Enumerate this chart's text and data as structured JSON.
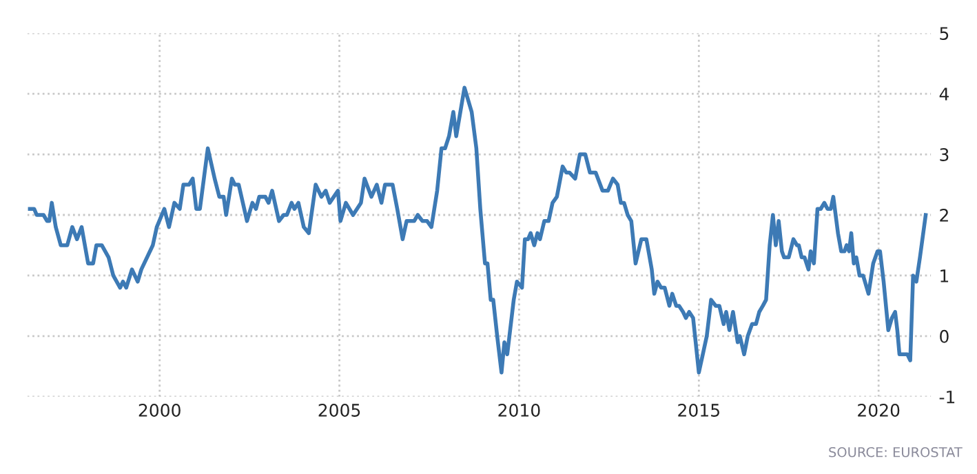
{
  "chart_data": {
    "type": "line",
    "x": [
      1996.39,
      1996.51,
      1996.58,
      1996.77,
      1996.87,
      1996.93,
      1997.0,
      1997.11,
      1997.25,
      1997.43,
      1997.57,
      1997.7,
      1997.83,
      1998.01,
      1998.15,
      1998.24,
      1998.39,
      1998.58,
      1998.71,
      1998.9,
      1998.98,
      1999.07,
      1999.23,
      1999.39,
      1999.49,
      1999.81,
      1999.92,
      2000.13,
      2000.26,
      2000.41,
      2000.56,
      2000.66,
      2000.82,
      2000.92,
      2001.02,
      2001.12,
      2001.34,
      2001.53,
      2001.66,
      2001.78,
      2001.85,
      2002.01,
      2002.09,
      2002.2,
      2002.43,
      2002.58,
      2002.68,
      2002.77,
      2002.94,
      2003.03,
      2003.13,
      2003.32,
      2003.45,
      2003.54,
      2003.67,
      2003.75,
      2003.86,
      2004.01,
      2004.15,
      2004.34,
      2004.5,
      2004.62,
      2004.73,
      2004.96,
      2005.03,
      2005.18,
      2005.38,
      2005.6,
      2005.7,
      2005.89,
      2006.04,
      2006.17,
      2006.27,
      2006.48,
      2006.61,
      2006.76,
      2006.87,
      2007.08,
      2007.18,
      2007.31,
      2007.44,
      2007.56,
      2007.72,
      2007.84,
      2007.94,
      2008.05,
      2008.17,
      2008.25,
      2008.48,
      2008.68,
      2008.81,
      2008.92,
      2009.05,
      2009.12,
      2009.21,
      2009.28,
      2009.39,
      2009.51,
      2009.59,
      2009.67,
      2009.85,
      2009.94,
      2010.08,
      2010.16,
      2010.25,
      2010.32,
      2010.42,
      2010.51,
      2010.58,
      2010.7,
      2010.82,
      2010.93,
      2011.05,
      2011.21,
      2011.31,
      2011.4,
      2011.56,
      2011.69,
      2011.84,
      2011.97,
      2012.13,
      2012.32,
      2012.47,
      2012.61,
      2012.74,
      2012.83,
      2012.92,
      2013.02,
      2013.12,
      2013.24,
      2013.4,
      2013.54,
      2013.63,
      2013.69,
      2013.76,
      2013.85,
      2013.95,
      2014.05,
      2014.18,
      2014.26,
      2014.37,
      2014.45,
      2014.56,
      2014.64,
      2014.73,
      2014.84,
      2015.0,
      2015.11,
      2015.22,
      2015.34,
      2015.47,
      2015.57,
      2015.69,
      2015.76,
      2015.85,
      2015.95,
      2016.08,
      2016.14,
      2016.26,
      2016.36,
      2016.48,
      2016.59,
      2016.68,
      2016.78,
      2016.87,
      2016.97,
      2017.06,
      2017.14,
      2017.22,
      2017.31,
      2017.37,
      2017.5,
      2017.63,
      2017.73,
      2017.78,
      2017.86,
      2017.94,
      2018.05,
      2018.11,
      2018.2,
      2018.3,
      2018.39,
      2018.49,
      2018.58,
      2018.67,
      2018.74,
      2018.87,
      2018.96,
      2019.05,
      2019.11,
      2019.18,
      2019.24,
      2019.31,
      2019.38,
      2019.47,
      2019.57,
      2019.72,
      2019.85,
      2019.97,
      2020.04,
      2020.14,
      2020.27,
      2020.37,
      2020.46,
      2020.52,
      2020.58,
      2020.71,
      2020.8,
      2020.88,
      2020.96,
      2021.05,
      2021.15,
      2021.31
    ],
    "series": [
      {
        "color": "#3d7ab5",
        "values": [
          2.1,
          2.1,
          2.0,
          2.0,
          1.9,
          1.9,
          2.2,
          1.8,
          1.5,
          1.5,
          1.8,
          1.6,
          1.8,
          1.2,
          1.2,
          1.5,
          1.5,
          1.3,
          1.0,
          0.8,
          0.9,
          0.8,
          1.1,
          0.9,
          1.1,
          1.5,
          1.8,
          2.1,
          1.8,
          2.2,
          2.1,
          2.5,
          2.5,
          2.6,
          2.1,
          2.1,
          3.1,
          2.6,
          2.3,
          2.3,
          2.0,
          2.6,
          2.5,
          2.5,
          1.9,
          2.2,
          2.1,
          2.3,
          2.3,
          2.2,
          2.4,
          1.9,
          2.0,
          2.0,
          2.2,
          2.1,
          2.2,
          1.8,
          1.7,
          2.5,
          2.3,
          2.4,
          2.2,
          2.4,
          1.9,
          2.2,
          2.0,
          2.2,
          2.6,
          2.3,
          2.5,
          2.2,
          2.5,
          2.5,
          2.1,
          1.6,
          1.9,
          1.9,
          2.0,
          1.9,
          1.9,
          1.8,
          2.4,
          3.1,
          3.1,
          3.3,
          3.7,
          3.3,
          4.1,
          3.7,
          3.1,
          2.1,
          1.2,
          1.2,
          0.6,
          0.6,
          0.0,
          -0.6,
          -0.1,
          -0.3,
          0.6,
          0.9,
          0.8,
          1.6,
          1.6,
          1.7,
          1.5,
          1.7,
          1.6,
          1.9,
          1.9,
          2.2,
          2.3,
          2.8,
          2.7,
          2.7,
          2.6,
          3.0,
          3.0,
          2.7,
          2.7,
          2.4,
          2.4,
          2.6,
          2.5,
          2.2,
          2.2,
          2.0,
          1.9,
          1.2,
          1.6,
          1.6,
          1.3,
          1.1,
          0.7,
          0.9,
          0.8,
          0.8,
          0.5,
          0.7,
          0.5,
          0.5,
          0.4,
          0.3,
          0.4,
          0.3,
          -0.6,
          -0.3,
          0.0,
          0.6,
          0.5,
          0.5,
          0.2,
          0.4,
          0.1,
          0.4,
          -0.1,
          0.0,
          -0.3,
          0.0,
          0.2,
          0.2,
          0.4,
          0.5,
          0.6,
          1.5,
          2.0,
          1.5,
          1.9,
          1.4,
          1.3,
          1.3,
          1.6,
          1.5,
          1.5,
          1.3,
          1.3,
          1.1,
          1.4,
          1.2,
          2.1,
          2.1,
          2.2,
          2.1,
          2.1,
          2.3,
          1.7,
          1.4,
          1.4,
          1.5,
          1.4,
          1.7,
          1.2,
          1.3,
          1.0,
          1.0,
          0.7,
          1.2,
          1.4,
          1.4,
          0.9,
          0.1,
          0.3,
          0.4,
          0.1,
          -0.3,
          -0.3,
          -0.3,
          -0.4,
          1.0,
          0.9,
          1.3,
          2.0
        ]
      }
    ],
    "xlim": [
      1996.32,
      2021.46
    ],
    "ylim": [
      -1,
      5
    ],
    "xticks": [
      2000,
      2005,
      2010,
      2015,
      2020
    ],
    "yticks": [
      -1,
      0,
      1,
      2,
      3,
      4,
      5
    ],
    "grid": true,
    "line_style": "solid",
    "annotations": [
      "SOURCE: EUROSTAT"
    ]
  }
}
